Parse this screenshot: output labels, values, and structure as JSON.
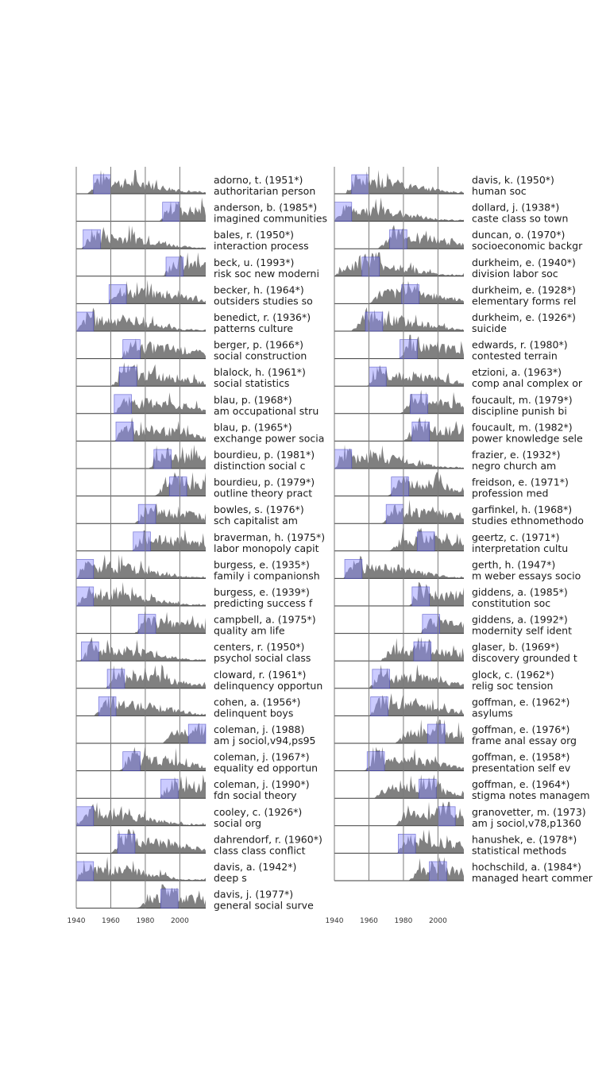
{
  "chart_data": {
    "type": "area",
    "x_range": [
      1940,
      2015
    ],
    "x_ticks": [
      1940,
      1960,
      1980,
      2000
    ],
    "grid": true,
    "colors": {
      "area": "#808080",
      "highlight": "#8c8cff",
      "highlight_edge": "#4040c0",
      "overlap": "#5a5a9e"
    },
    "columns": [
      [
        {
          "name": "adorno, t. (1951*)",
          "sub": "authoritarian person",
          "window": [
            1950,
            1960
          ],
          "start": 1946
        },
        {
          "name": "anderson, b. (1985*)",
          "sub": "imagined communities",
          "window": [
            1990,
            2000
          ],
          "start": 1988
        },
        {
          "name": "bales, r. (1950*)",
          "sub": "interaction process",
          "window": [
            1944,
            1954
          ],
          "start": 1943
        },
        {
          "name": "beck, u. (1993*)",
          "sub": "risk soc new moderni",
          "window": [
            1992,
            2002
          ],
          "start": 1990
        },
        {
          "name": "becker, h. (1964*)",
          "sub": "outsiders studies so",
          "window": [
            1959,
            1969
          ],
          "start": 1958
        },
        {
          "name": "benedict, r. (1936*)",
          "sub": "patterns culture",
          "window": [
            1940,
            1950
          ],
          "start": 1940
        },
        {
          "name": "berger, p. (1966*)",
          "sub": "social construction",
          "window": [
            1967,
            1977
          ],
          "start": 1966
        },
        {
          "name": "blalock, h. (1961*)",
          "sub": "social statistics",
          "window": [
            1965,
            1975
          ],
          "start": 1960
        },
        {
          "name": "blau, p. (1968*)",
          "sub": "am occupational stru",
          "window": [
            1962,
            1972
          ],
          "start": 1962
        },
        {
          "name": "blau, p. (1965*)",
          "sub": "exchange power socia",
          "window": [
            1963,
            1973
          ],
          "start": 1962
        },
        {
          "name": "bourdieu, p. (1981*)",
          "sub": "distinction social c",
          "window": [
            1985,
            1995
          ],
          "start": 1982
        },
        {
          "name": "bourdieu, p. (1979*)",
          "sub": "outline theory pract",
          "window": [
            1994,
            2004
          ],
          "start": 1985
        },
        {
          "name": "bowles, s. (1976*)",
          "sub": "sch capitalist am",
          "window": [
            1976,
            1986
          ],
          "start": 1974
        },
        {
          "name": "braverman, h. (1975*)",
          "sub": "labor monopoly capit",
          "window": [
            1973,
            1983
          ],
          "start": 1972
        },
        {
          "name": "burgess, e. (1935*)",
          "sub": "family i companionsh",
          "window": [
            1940,
            1950
          ],
          "start": 1940
        },
        {
          "name": "burgess, e. (1939*)",
          "sub": "predicting success f",
          "window": [
            1940,
            1950
          ],
          "start": 1940
        },
        {
          "name": "campbell, a. (1975*)",
          "sub": "quality am life",
          "window": [
            1976,
            1986
          ],
          "start": 1974
        },
        {
          "name": "centers, r. (1950*)",
          "sub": "psychol social class",
          "window": [
            1943,
            1953
          ],
          "start": 1942
        },
        {
          "name": "cloward, r. (1961*)",
          "sub": "delinquency opportun",
          "window": [
            1958,
            1968
          ],
          "start": 1957
        },
        {
          "name": "cohen, a. (1956*)",
          "sub": "delinquent boys",
          "window": [
            1953,
            1963
          ],
          "start": 1950
        },
        {
          "name": "coleman, j. (1988)",
          "sub": "am j sociol,v94,ps95",
          "window": [
            2005,
            2015
          ],
          "start": 1990
        },
        {
          "name": "coleman, j. (1967*)",
          "sub": "equality ed opportun",
          "window": [
            1967,
            1977
          ],
          "start": 1965
        },
        {
          "name": "coleman, j. (1990*)",
          "sub": "fdn social theory",
          "window": [
            1989,
            1999
          ],
          "start": 1988
        },
        {
          "name": "cooley, c. (1926*)",
          "sub": "social org",
          "window": [
            1940,
            1950
          ],
          "start": 1940
        },
        {
          "name": "dahrendorf, r. (1960*)",
          "sub": "class class conflict",
          "window": [
            1964,
            1974
          ],
          "start": 1960
        },
        {
          "name": "davis, a. (1942*)",
          "sub": "deep s",
          "window": [
            1940,
            1950
          ],
          "start": 1940
        },
        {
          "name": "davis, j. (1977*)",
          "sub": "general social surve",
          "window": [
            1989,
            1999
          ],
          "start": 1975
        }
      ],
      [
        {
          "name": "davis, k. (1950*)",
          "sub": "human soc",
          "window": [
            1950,
            1960
          ],
          "start": 1946
        },
        {
          "name": "dollard, j. (1938*)",
          "sub": "caste class so town",
          "window": [
            1940,
            1950
          ],
          "start": 1940
        },
        {
          "name": "duncan, o. (1970*)",
          "sub": "socioeconomic backgr",
          "window": [
            1972,
            1982
          ],
          "start": 1965
        },
        {
          "name": "durkheim, e. (1940*)",
          "sub": "division labor soc",
          "window": [
            1956,
            1966
          ],
          "start": 1940
        },
        {
          "name": "durkheim, e. (1928*)",
          "sub": "elementary forms rel",
          "window": [
            1979,
            1989
          ],
          "start": 1960
        },
        {
          "name": "durkheim, e. (1926*)",
          "sub": "suicide",
          "window": [
            1958,
            1968
          ],
          "start": 1950
        },
        {
          "name": "edwards, r. (1980*)",
          "sub": "contested terrain",
          "window": [
            1978,
            1988
          ],
          "start": 1977
        },
        {
          "name": "etzioni, a. (1963*)",
          "sub": "comp anal complex or",
          "window": [
            1960,
            1970
          ],
          "start": 1959
        },
        {
          "name": "foucault, m. (1979*)",
          "sub": "discipline punish bi",
          "window": [
            1984,
            1994
          ],
          "start": 1978
        },
        {
          "name": "foucault, m. (1982*)",
          "sub": "power knowledge sele",
          "window": [
            1985,
            1995
          ],
          "start": 1980
        },
        {
          "name": "frazier, e. (1932*)",
          "sub": "negro church am",
          "window": [
            1940,
            1950
          ],
          "start": 1940
        },
        {
          "name": "freidson, e. (1971*)",
          "sub": "profession med",
          "window": [
            1973,
            1983
          ],
          "start": 1971
        },
        {
          "name": "garfinkel, h. (1968*)",
          "sub": "studies ethnomethodo",
          "window": [
            1970,
            1980
          ],
          "start": 1967
        },
        {
          "name": "geertz, c. (1971*)",
          "sub": "interpretation cultu",
          "window": [
            1988,
            1998
          ],
          "start": 1972
        },
        {
          "name": "gerth, h. (1947*)",
          "sub": "m weber essays socio",
          "window": [
            1946,
            1956
          ],
          "start": 1945
        },
        {
          "name": "giddens, a. (1985*)",
          "sub": "constitution soc",
          "window": [
            1985,
            1995
          ],
          "start": 1983
        },
        {
          "name": "giddens, a. (1992*)",
          "sub": "modernity self ident",
          "window": [
            1991,
            2001
          ],
          "start": 1990
        },
        {
          "name": "glaser, b. (1969*)",
          "sub": "discovery grounded t",
          "window": [
            1986,
            1996
          ],
          "start": 1967
        },
        {
          "name": "glock, c. (1962*)",
          "sub": "relig soc tension",
          "window": [
            1962,
            1972
          ],
          "start": 1960
        },
        {
          "name": "goffman, e. (1962*)",
          "sub": "asylums",
          "window": [
            1961,
            1971
          ],
          "start": 1960
        },
        {
          "name": "goffman, e. (1976*)",
          "sub": "frame anal essay org",
          "window": [
            1994,
            2004
          ],
          "start": 1975
        },
        {
          "name": "goffman, e. (1958*)",
          "sub": "presentation self ev",
          "window": [
            1959,
            1969
          ],
          "start": 1957
        },
        {
          "name": "goffman, e. (1964*)",
          "sub": "stigma notes managem",
          "window": [
            1989,
            1999
          ],
          "start": 1963
        },
        {
          "name": "granovetter, m. (1973)",
          "sub": "am j sociol,v78,p1360",
          "window": [
            2000,
            2010
          ],
          "start": 1975
        },
        {
          "name": "hanushek, e. (1978*)",
          "sub": "statistical methods",
          "window": [
            1977,
            1987
          ],
          "start": 1976
        },
        {
          "name": "hochschild, a. (1984*)",
          "sub": "managed heart commer",
          "window": [
            1995,
            2005
          ],
          "start": 1983
        }
      ]
    ]
  }
}
